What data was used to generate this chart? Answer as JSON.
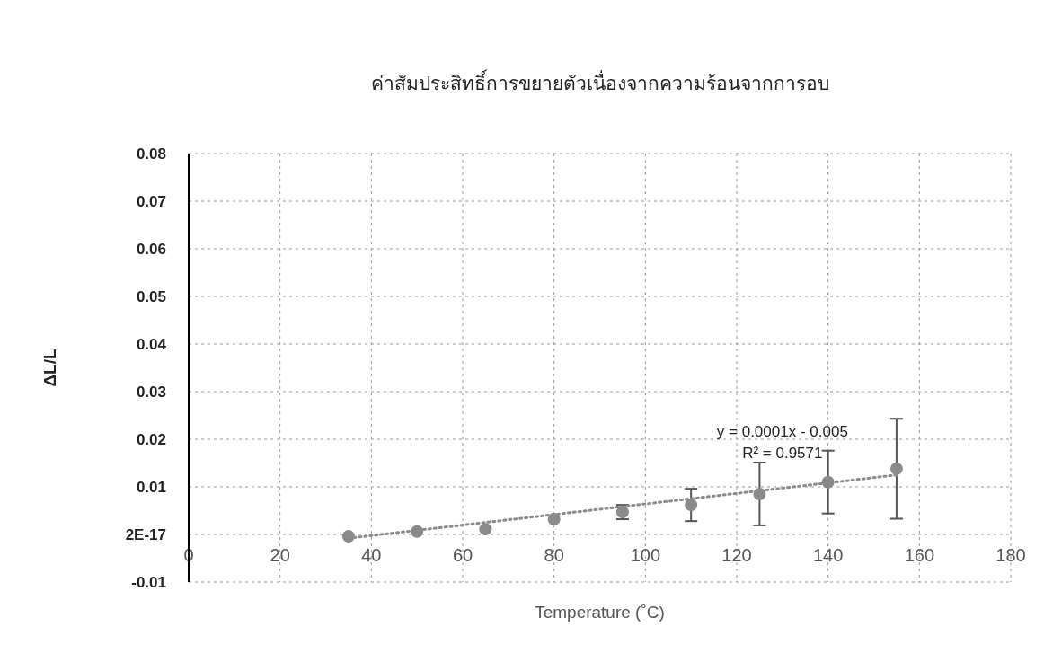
{
  "chart_data": {
    "type": "scatter",
    "title": "ค่าสัมประสิทธิ์การขยายตัวเนื่องจากความร้อนจากการอบ",
    "xlabel": "Temperature (˚C)",
    "ylabel": "ΔL/L",
    "xlim": [
      0,
      180
    ],
    "ylim": [
      -0.01,
      0.08
    ],
    "xticks": [
      0,
      20,
      40,
      60,
      80,
      100,
      120,
      140,
      160,
      180
    ],
    "yticks": [
      -0.01,
      {
        "value": 0,
        "label": "2E-17"
      },
      0.01,
      0.02,
      0.03,
      0.04,
      0.05,
      0.06,
      0.07,
      0.08
    ],
    "grid": true,
    "annotations": [
      "y = 0.0001x - 0.005",
      "R² = 0.9571"
    ],
    "series": [
      {
        "marker": "circle",
        "color": "#8a8a8a",
        "x": [
          35,
          50,
          65,
          80,
          95,
          110,
          125,
          140,
          155
        ],
        "values": [
          -0.0004,
          0.0006,
          0.0011,
          0.0032,
          0.0047,
          0.0062,
          0.0085,
          0.011,
          0.0138
        ],
        "errors": [
          null,
          null,
          null,
          null,
          0.0015,
          0.0034,
          0.0066,
          0.0066,
          0.0105
        ]
      },
      {
        "type": "line",
        "color": "#8a8a8a",
        "line_style": "dotted",
        "x": [
          35,
          155
        ],
        "values": [
          -0.0008,
          0.0125
        ]
      }
    ]
  }
}
